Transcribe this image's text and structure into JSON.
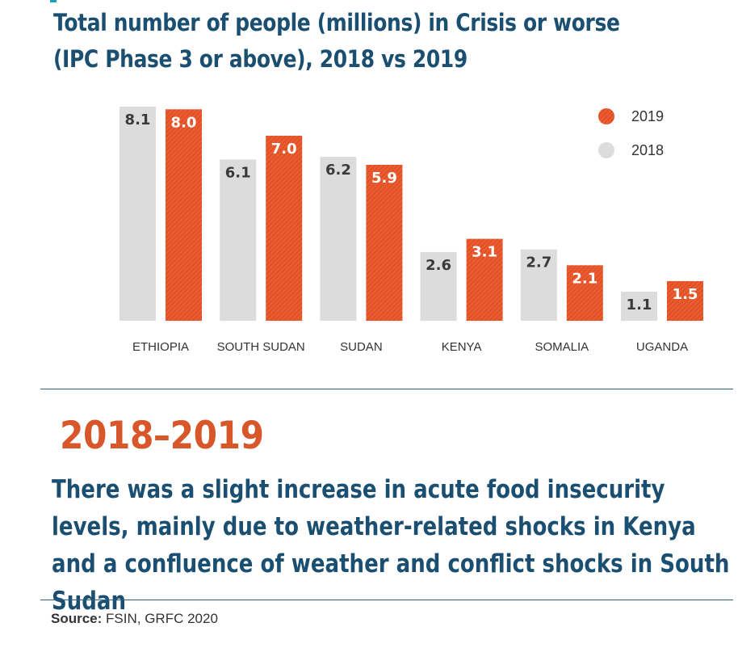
{
  "header": {
    "title_line1": "Total number of people (millions) in Crisis or worse",
    "title_line2": "(IPC Phase 3 or above), 2018 vs 2019"
  },
  "chart_data": {
    "type": "bar",
    "title": "Total number of people (millions) in Crisis or worse (IPC Phase 3 or above), 2018 vs 2019",
    "categories": [
      "ETHIOPIA",
      "SOUTH SUDAN",
      "SUDAN",
      "KENYA",
      "SOMALIA",
      "UGANDA"
    ],
    "series": [
      {
        "name": "2018",
        "values": [
          8.1,
          6.1,
          6.2,
          2.6,
          2.7,
          1.1
        ],
        "labels": [
          "8.1",
          "6.1",
          "6.2",
          "2.6",
          "2.7",
          "1.1"
        ],
        "color": "#dcdcdc"
      },
      {
        "name": "2019",
        "values": [
          8.0,
          7.0,
          5.9,
          3.1,
          2.1,
          1.5
        ],
        "labels": [
          "8.0",
          "7.0",
          "5.9",
          "3.1",
          "2.1",
          "1.5"
        ],
        "color": "#ea5a2c"
      }
    ],
    "legend": [
      {
        "label": "2019",
        "series": "2019"
      },
      {
        "label": "2018",
        "series": "2018"
      }
    ],
    "legend_position": "top-right",
    "xlabel": "",
    "ylabel": "",
    "ylim": [
      0,
      8.1
    ],
    "grid": false
  },
  "summary": {
    "period": "2018–2019",
    "text": "There was a slight increase in acute food insecurity levels, mainly due to weather-related shocks in Kenya and a confluence of weather and conflict shocks in South Sudan"
  },
  "source": {
    "label": "Source:",
    "text": "FSIN, GRFC 2020"
  }
}
